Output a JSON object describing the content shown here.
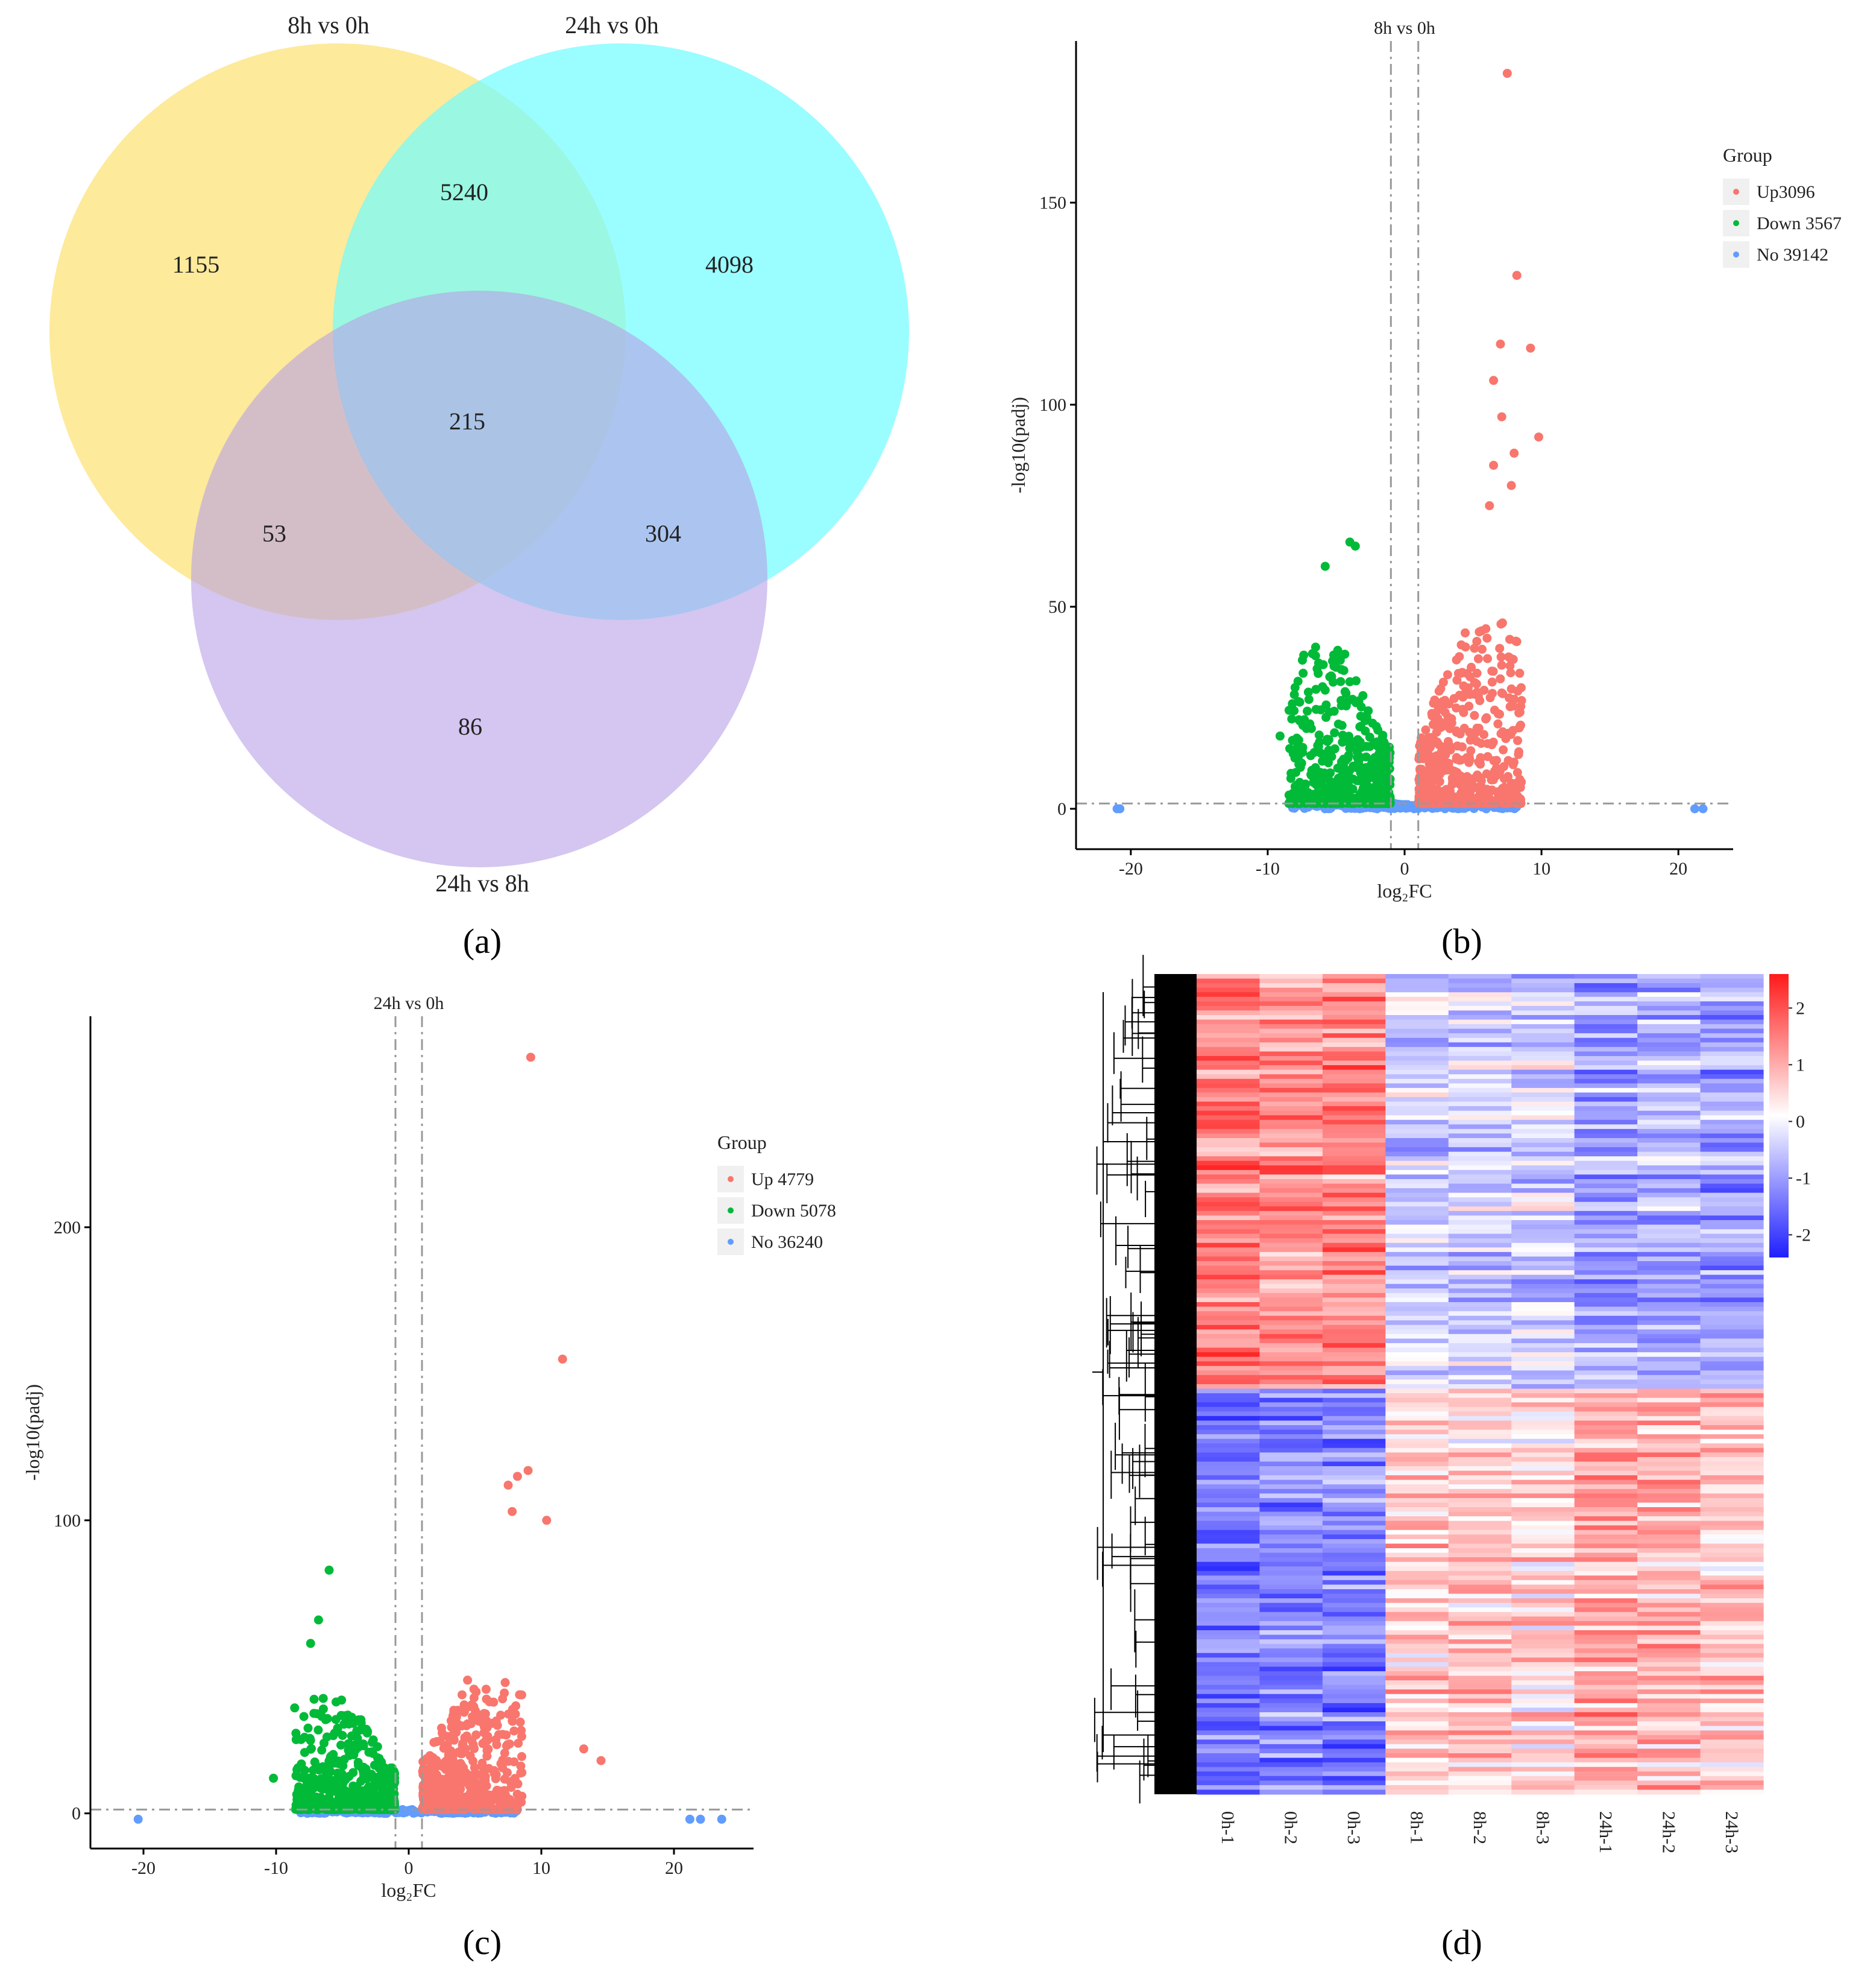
{
  "panels": {
    "a": "(a)",
    "b": "(b)",
    "c": "(c)",
    "d": "(d)"
  },
  "chart_data": [
    {
      "type": "venn",
      "sets": [
        "8h vs 0h",
        "24h vs 0h",
        "24h vs 8h"
      ],
      "regions": [
        {
          "sets": [
            "8h vs 0h"
          ],
          "value": 1155
        },
        {
          "sets": [
            "24h vs 0h"
          ],
          "value": 4098
        },
        {
          "sets": [
            "24h vs 8h"
          ],
          "value": 86
        },
        {
          "sets": [
            "8h vs 0h",
            "24h vs 0h"
          ],
          "value": 5240
        },
        {
          "sets": [
            "8h vs 0h",
            "24h vs 8h"
          ],
          "value": 53
        },
        {
          "sets": [
            "24h vs 0h",
            "24h vs 8h"
          ],
          "value": 304
        },
        {
          "sets": [
            "8h vs 0h",
            "24h vs 0h",
            "24h vs 8h"
          ],
          "value": 215
        }
      ],
      "colors": [
        "#fde68a",
        "#6ffcff",
        "#c4b0ea"
      ]
    },
    {
      "type": "scatter",
      "title": "8h vs 0h",
      "xlabel": "log₂FC",
      "ylabel": "-log10(padj)",
      "xlim": [
        -24,
        24
      ],
      "ylim": [
        -10,
        190
      ],
      "xticks": [
        -20,
        -10,
        0,
        10,
        20
      ],
      "yticks": [
        0,
        50,
        100,
        150
      ],
      "hline": 1.3,
      "vlines": [
        -1,
        1
      ],
      "legend_title": "Group",
      "legend": [
        {
          "label": "Up3096",
          "color": "#f8766d"
        },
        {
          "label": "Down 3567",
          "color": "#00ba38"
        },
        {
          "label": "No 39142",
          "color": "#619cff"
        }
      ],
      "outliers_up": [
        [
          7.5,
          182
        ],
        [
          8.2,
          132
        ],
        [
          9.2,
          114
        ],
        [
          7.0,
          115
        ],
        [
          6.5,
          106
        ],
        [
          9.8,
          92
        ],
        [
          8.0,
          88
        ],
        [
          7.8,
          80
        ],
        [
          6.5,
          85
        ],
        [
          6.2,
          75
        ],
        [
          7.1,
          97
        ]
      ],
      "outliers_down": [
        [
          -4.0,
          66
        ],
        [
          -3.6,
          65
        ],
        [
          -5.8,
          60
        ],
        [
          -6.5,
          40
        ],
        [
          -8.0,
          30
        ],
        [
          -9.1,
          18
        ],
        [
          -8.2,
          26
        ]
      ],
      "outliers_no": [
        [
          -21,
          0
        ],
        [
          -20.8,
          0
        ],
        [
          21.2,
          0
        ],
        [
          21.8,
          0
        ]
      ]
    },
    {
      "type": "scatter",
      "title": "24h vs 0h",
      "xlabel": "log₂FC",
      "ylabel": "-log10(padj)",
      "xlim": [
        -24,
        26
      ],
      "ylim": [
        -12,
        272
      ],
      "xticks": [
        -20,
        -10,
        0,
        10,
        20
      ],
      "yticks": [
        0,
        100,
        200
      ],
      "hline": 1.3,
      "vlines": [
        -1,
        1
      ],
      "legend_title": "Group",
      "legend": [
        {
          "label": "Up 4779",
          "color": "#f8766d"
        },
        {
          "label": "Down 5078",
          "color": "#00ba38"
        },
        {
          "label": "No 36240",
          "color": "#619cff"
        }
      ],
      "outliers_up": [
        [
          9.2,
          258
        ],
        [
          11.6,
          155
        ],
        [
          9.0,
          117
        ],
        [
          8.2,
          115
        ],
        [
          7.5,
          112
        ],
        [
          10.4,
          100
        ],
        [
          7.8,
          103
        ],
        [
          14.5,
          18
        ],
        [
          13.2,
          22
        ]
      ],
      "outliers_down": [
        [
          -6.0,
          83
        ],
        [
          -6.8,
          66
        ],
        [
          -7.4,
          58
        ],
        [
          -8.6,
          36
        ],
        [
          -10.2,
          12
        ]
      ],
      "outliers_no": [
        [
          -20.4,
          -2
        ],
        [
          21.2,
          -2
        ],
        [
          22.0,
          -2
        ],
        [
          23.6,
          -2
        ]
      ]
    },
    {
      "type": "heatmap",
      "columns": [
        "0h-1",
        "0h-2",
        "0h-3",
        "8h-1",
        "8h-2",
        "8h-3",
        "24h-1",
        "24h-2",
        "24h-3"
      ],
      "scale_ticks": [
        "2",
        "1",
        "0",
        "-1",
        "-2"
      ],
      "scale_range": [
        -2.4,
        2.6
      ],
      "colors": {
        "low": "#1f1fff",
        "mid": "#ffffff",
        "high": "#ff1a1a"
      }
    }
  ]
}
